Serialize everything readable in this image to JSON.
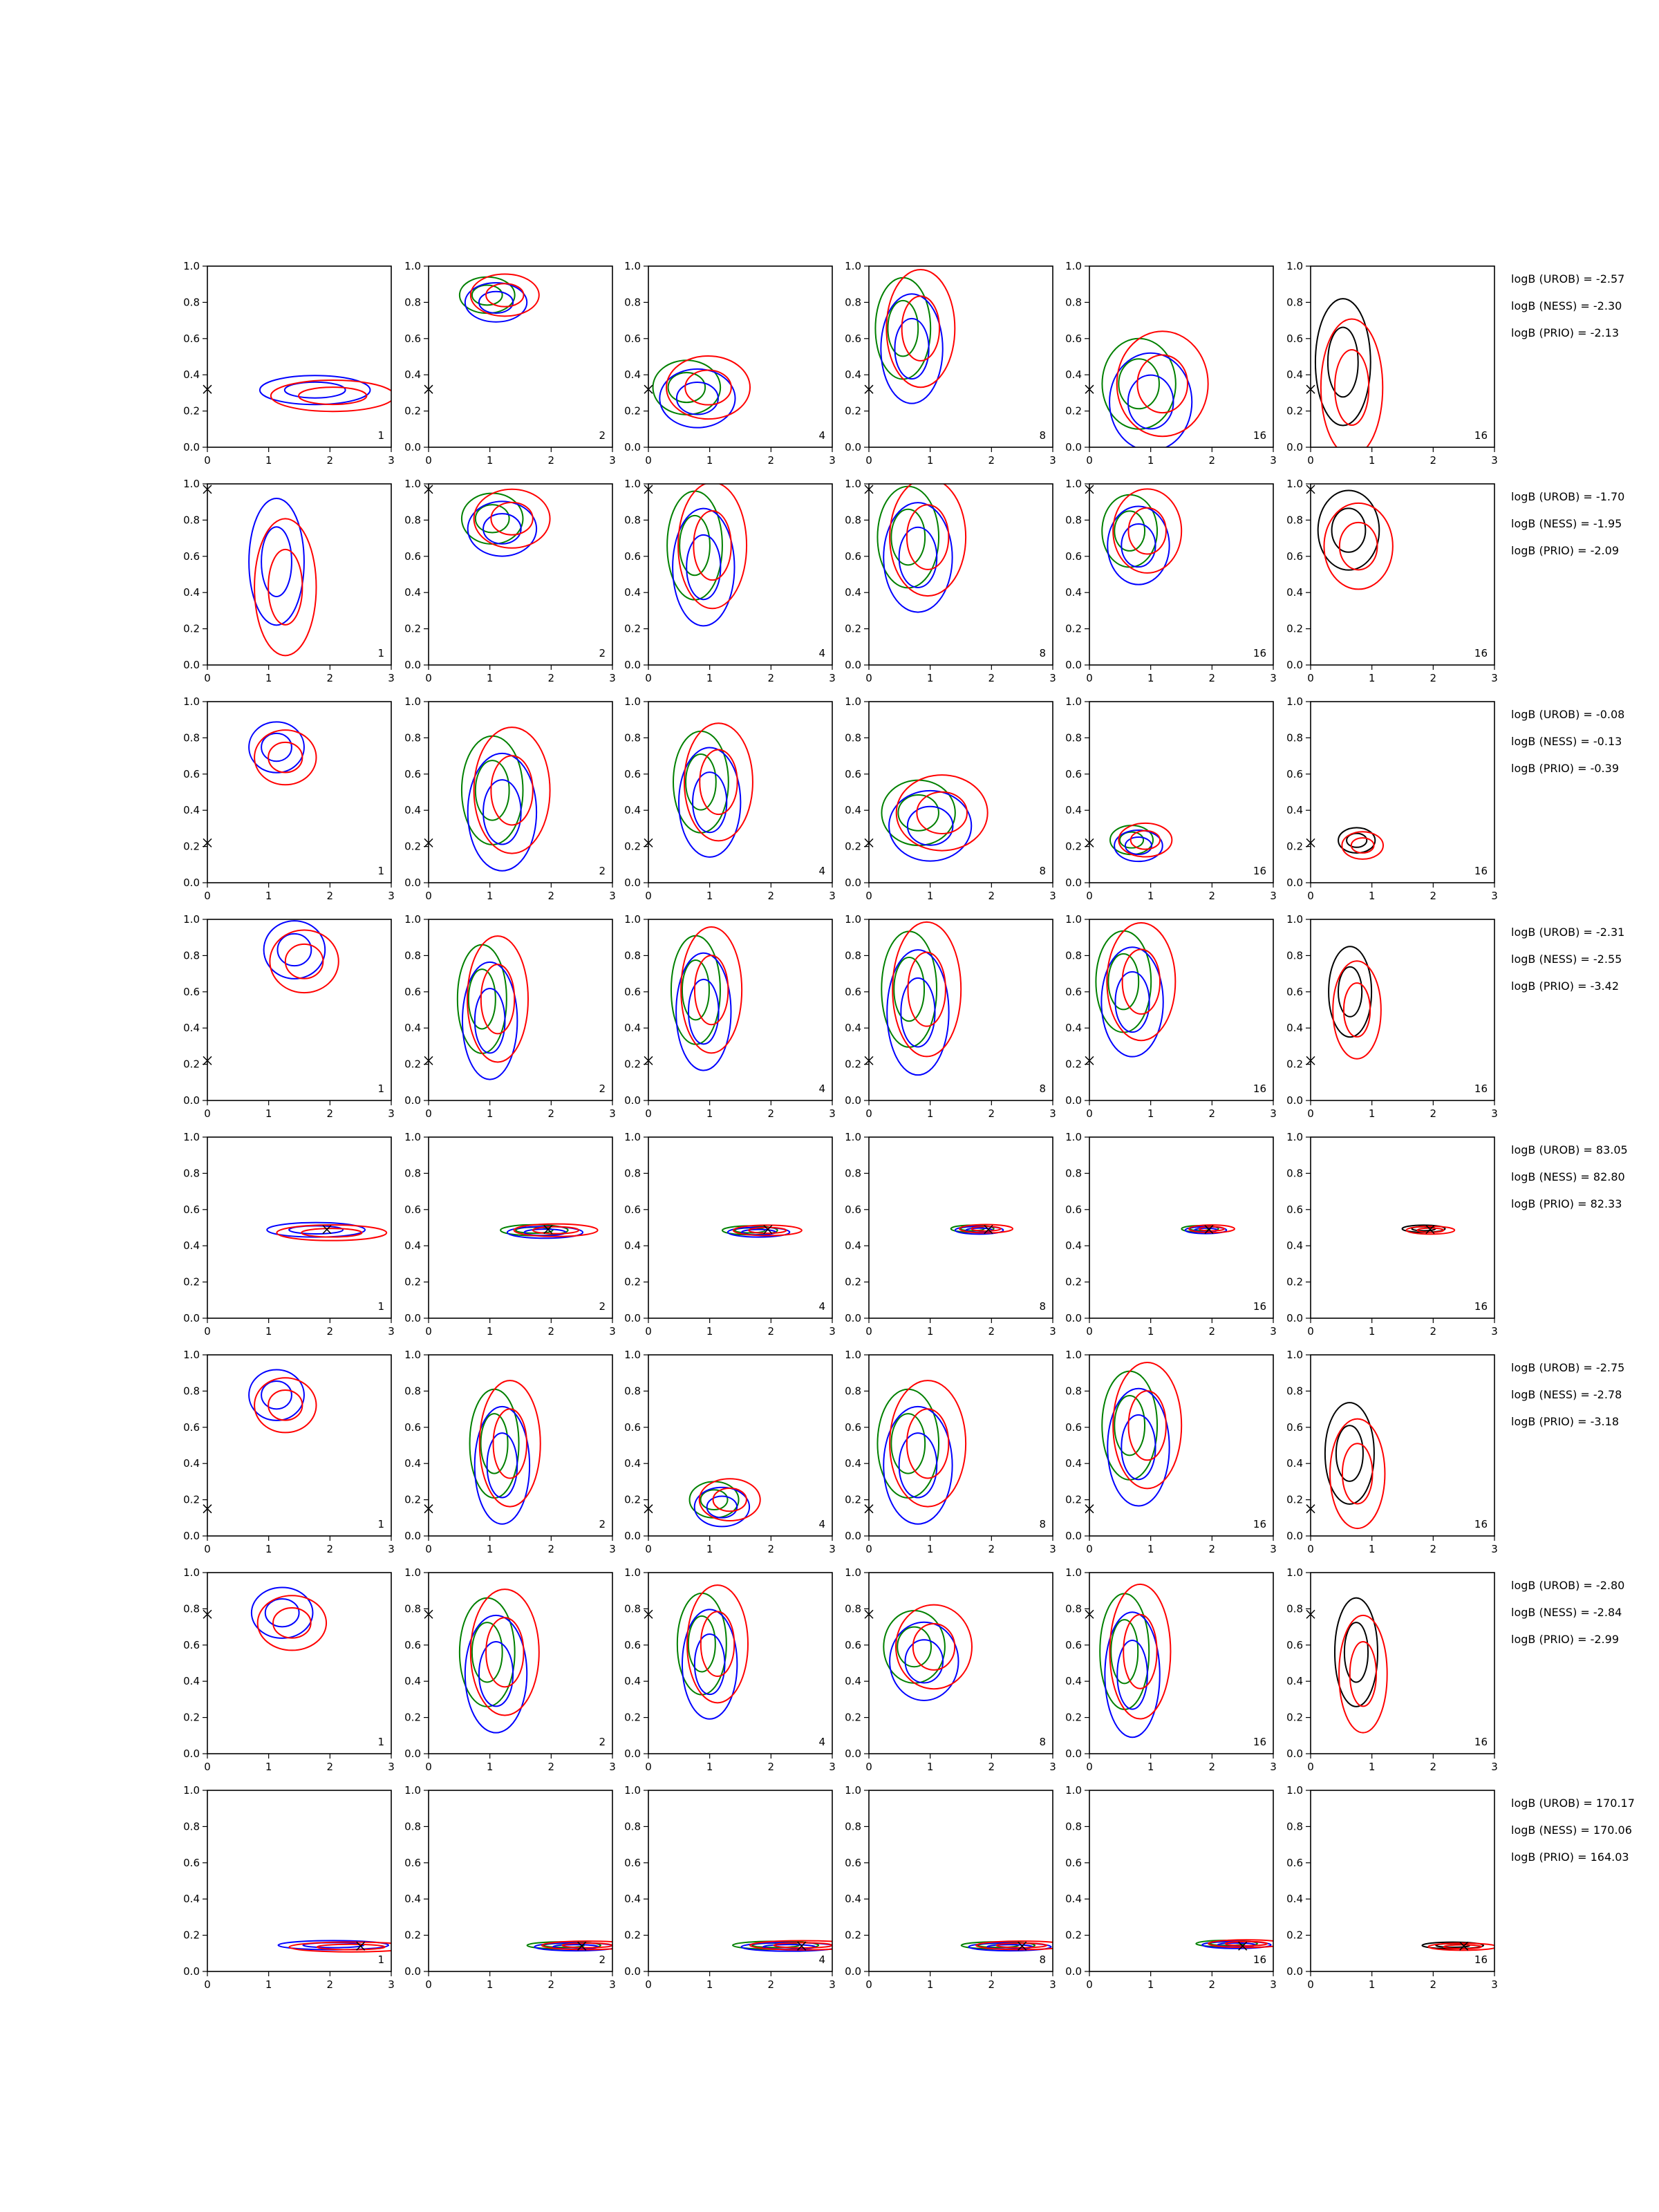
{
  "figure": {
    "type": "contour-grid",
    "rows": 8,
    "cols": 6
  },
  "chart_data": {
    "type": "contour",
    "xlim": [
      0,
      3
    ],
    "ylim": [
      0,
      1
    ],
    "xticks": [
      "0",
      "1",
      "2",
      "3"
    ],
    "yticks": [
      "0.0",
      "0.2",
      "0.4",
      "0.6",
      "0.8",
      "1.0"
    ],
    "grid": false,
    "legend": "none",
    "panel_labels": [
      "1",
      "2",
      "4",
      "8",
      "16",
      "16"
    ],
    "colors": {
      "blue": "#0000ff",
      "red": "#ff0000",
      "green": "#008000",
      "black": "#000000"
    },
    "panel_series": [
      [
        "blue",
        "red"
      ],
      [
        "green",
        "blue",
        "red"
      ],
      [
        "green",
        "blue",
        "red"
      ],
      [
        "green",
        "blue",
        "red"
      ],
      [
        "green",
        "blue",
        "red"
      ],
      [
        "black",
        "red"
      ]
    ],
    "rows": [
      {
        "true": {
          "x": 0.0,
          "y": 0.32
        },
        "bayes_factors": [
          "logB (UROB) = -2.57",
          "logB (NESS) = -2.30",
          "logB (PRIO) = -2.13"
        ],
        "modes": [
          {
            "x": 1.9,
            "y": 0.3,
            "sx": 0.9,
            "sy": 0.08
          },
          {
            "x": 1.1,
            "y": 0.82,
            "sx": 0.45,
            "sy": 0.1
          },
          {
            "x": 0.8,
            "y": 0.3,
            "sx": 0.55,
            "sy": 0.15
          },
          {
            "x": 0.7,
            "y": 0.6,
            "sx": 0.45,
            "sy": 0.28
          },
          {
            "x": 1.0,
            "y": 0.3,
            "sx": 0.6,
            "sy": 0.25
          },
          {
            "x": 0.6,
            "y": 0.4,
            "sx": 0.45,
            "sy": 0.35
          }
        ]
      },
      {
        "true": {
          "x": 0.0,
          "y": 0.97
        },
        "bayes_factors": [
          "logB (UROB) = -1.70",
          "logB (NESS) = -1.95",
          "logB (PRIO) = -2.09"
        ],
        "modes": [
          {
            "x": 1.2,
            "y": 0.5,
            "sx": 0.45,
            "sy": 0.35
          },
          {
            "x": 1.2,
            "y": 0.78,
            "sx": 0.5,
            "sy": 0.14
          },
          {
            "x": 0.9,
            "y": 0.6,
            "sx": 0.45,
            "sy": 0.3
          },
          {
            "x": 0.8,
            "y": 0.65,
            "sx": 0.5,
            "sy": 0.28
          },
          {
            "x": 0.8,
            "y": 0.7,
            "sx": 0.45,
            "sy": 0.2
          },
          {
            "x": 0.7,
            "y": 0.7,
            "sx": 0.5,
            "sy": 0.22
          }
        ]
      },
      {
        "true": {
          "x": 0.0,
          "y": 0.22
        },
        "bayes_factors": [
          "logB (UROB) = -0.08",
          "logB (NESS) = -0.13",
          "logB (PRIO) = -0.39"
        ],
        "modes": [
          {
            "x": 1.2,
            "y": 0.72,
            "sx": 0.45,
            "sy": 0.14
          },
          {
            "x": 1.2,
            "y": 0.45,
            "sx": 0.5,
            "sy": 0.3
          },
          {
            "x": 1.0,
            "y": 0.5,
            "sx": 0.45,
            "sy": 0.28
          },
          {
            "x": 1.0,
            "y": 0.35,
            "sx": 0.6,
            "sy": 0.18
          },
          {
            "x": 0.8,
            "y": 0.22,
            "sx": 0.35,
            "sy": 0.08
          },
          {
            "x": 0.8,
            "y": 0.22,
            "sx": 0.3,
            "sy": 0.07
          }
        ]
      },
      {
        "true": {
          "x": 0.0,
          "y": 0.22
        },
        "bayes_factors": [
          "logB (UROB) = -2.31",
          "logB (NESS) = -2.55",
          "logB (PRIO) = -3.42"
        ],
        "modes": [
          {
            "x": 1.5,
            "y": 0.8,
            "sx": 0.5,
            "sy": 0.16
          },
          {
            "x": 1.0,
            "y": 0.5,
            "sx": 0.4,
            "sy": 0.3
          },
          {
            "x": 0.9,
            "y": 0.55,
            "sx": 0.4,
            "sy": 0.3
          },
          {
            "x": 0.8,
            "y": 0.55,
            "sx": 0.45,
            "sy": 0.32
          },
          {
            "x": 0.7,
            "y": 0.6,
            "sx": 0.45,
            "sy": 0.28
          },
          {
            "x": 0.7,
            "y": 0.55,
            "sx": 0.35,
            "sy": 0.25
          }
        ]
      },
      {
        "true": {
          "x": 1.95,
          "y": 0.49
        },
        "bayes_factors": [
          "logB (UROB) = 83.05",
          "logB (NESS) = 82.80",
          "logB (PRIO) = 82.33"
        ],
        "modes": [
          {
            "x": 1.9,
            "y": 0.48,
            "sx": 0.8,
            "sy": 0.04
          },
          {
            "x": 1.9,
            "y": 0.48,
            "sx": 0.55,
            "sy": 0.03
          },
          {
            "x": 1.8,
            "y": 0.48,
            "sx": 0.45,
            "sy": 0.025
          },
          {
            "x": 1.8,
            "y": 0.49,
            "sx": 0.35,
            "sy": 0.02
          },
          {
            "x": 1.9,
            "y": 0.49,
            "sx": 0.3,
            "sy": 0.018
          },
          {
            "x": 1.9,
            "y": 0.49,
            "sx": 0.35,
            "sy": 0.02
          }
        ]
      },
      {
        "true": {
          "x": 0.0,
          "y": 0.15
        },
        "bayes_factors": [
          "logB (UROB) = -2.75",
          "logB (NESS) = -2.78",
          "logB (PRIO) = -3.18"
        ],
        "modes": [
          {
            "x": 1.2,
            "y": 0.75,
            "sx": 0.45,
            "sy": 0.14
          },
          {
            "x": 1.2,
            "y": 0.45,
            "sx": 0.4,
            "sy": 0.3
          },
          {
            "x": 1.2,
            "y": 0.18,
            "sx": 0.4,
            "sy": 0.1
          },
          {
            "x": 0.8,
            "y": 0.45,
            "sx": 0.5,
            "sy": 0.3
          },
          {
            "x": 0.8,
            "y": 0.55,
            "sx": 0.45,
            "sy": 0.3
          },
          {
            "x": 0.7,
            "y": 0.4,
            "sx": 0.4,
            "sy": 0.28
          }
        ]
      },
      {
        "true": {
          "x": 0.0,
          "y": 0.77
        },
        "bayes_factors": [
          "logB (UROB) = -2.80",
          "logB (NESS) = -2.84",
          "logB (PRIO) = -2.99"
        ],
        "modes": [
          {
            "x": 1.3,
            "y": 0.75,
            "sx": 0.5,
            "sy": 0.14
          },
          {
            "x": 1.1,
            "y": 0.5,
            "sx": 0.45,
            "sy": 0.3
          },
          {
            "x": 1.0,
            "y": 0.55,
            "sx": 0.4,
            "sy": 0.28
          },
          {
            "x": 0.9,
            "y": 0.55,
            "sx": 0.5,
            "sy": 0.2
          },
          {
            "x": 0.7,
            "y": 0.5,
            "sx": 0.4,
            "sy": 0.32
          },
          {
            "x": 0.8,
            "y": 0.5,
            "sx": 0.35,
            "sy": 0.3
          }
        ]
      },
      {
        "true": {
          "x": 2.5,
          "y": 0.14
        },
        "bayes_factors": [
          "logB (UROB) = 170.17",
          "logB (NESS) = 170.06",
          "logB (PRIO) = 164.03"
        ],
        "modes": [
          {
            "x": 2.2,
            "y": 0.14,
            "sx": 0.9,
            "sy": 0.025
          },
          {
            "x": 2.4,
            "y": 0.14,
            "sx": 0.6,
            "sy": 0.02
          },
          {
            "x": 2.3,
            "y": 0.14,
            "sx": 0.7,
            "sy": 0.022
          },
          {
            "x": 2.3,
            "y": 0.14,
            "sx": 0.6,
            "sy": 0.02
          },
          {
            "x": 2.4,
            "y": 0.15,
            "sx": 0.5,
            "sy": 0.018
          },
          {
            "x": 2.4,
            "y": 0.14,
            "sx": 0.5,
            "sy": 0.018
          }
        ]
      }
    ]
  }
}
